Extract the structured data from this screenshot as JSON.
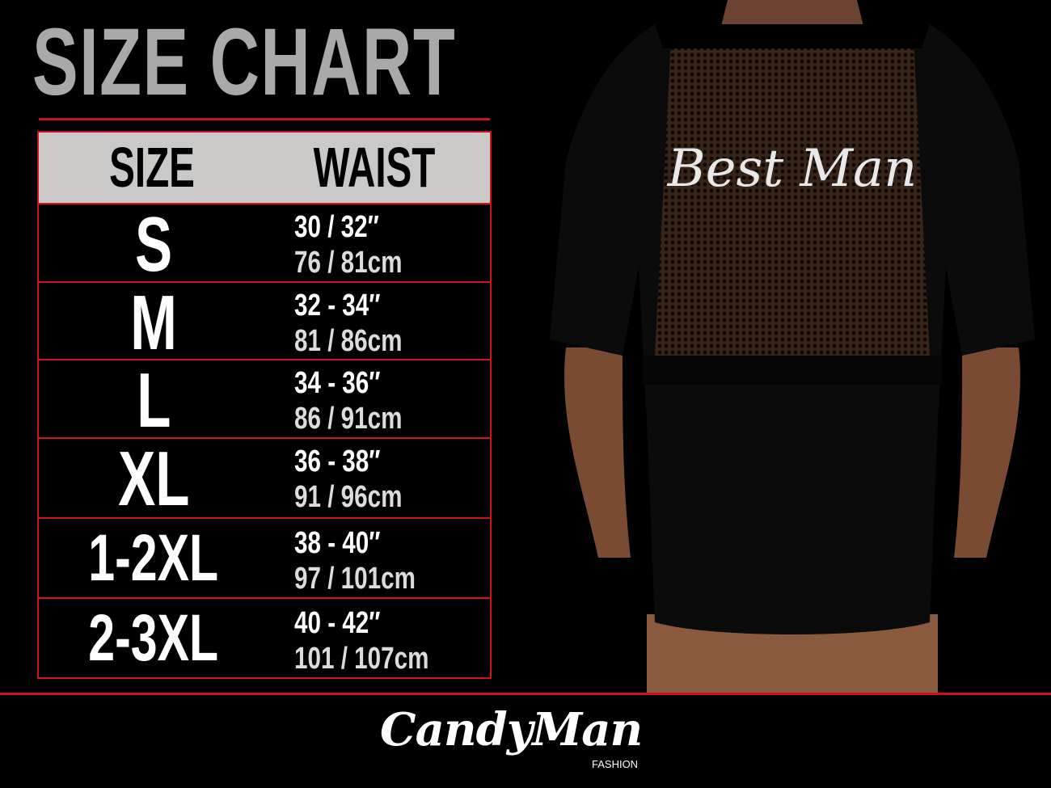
{
  "title": "SIZE CHART",
  "table": {
    "headers": [
      "SIZE",
      "WAIST"
    ],
    "rows": [
      {
        "size": "S",
        "inches": "30 / 32″",
        "cm": "76 / 81cm"
      },
      {
        "size": "M",
        "inches": "32 - 34″",
        "cm": "81 / 86cm"
      },
      {
        "size": "L",
        "inches": "34 - 36″",
        "cm": "86 / 91cm"
      },
      {
        "size": "XL",
        "inches": "36 - 38″",
        "cm": "91 / 96cm"
      },
      {
        "size": "1-2XL",
        "inches": "38 - 40″",
        "cm": "97 / 101cm"
      },
      {
        "size": "2-3XL",
        "inches": "40 - 42″",
        "cm": "101 / 107cm"
      }
    ]
  },
  "product_photo": {
    "garment_print": "Best Man"
  },
  "logo": {
    "brand": "CandyMan",
    "sub": "FASHION"
  },
  "colors": {
    "accent": "#d0121b",
    "header_bg": "#cbc8c8",
    "title": "#a9a9a9"
  }
}
